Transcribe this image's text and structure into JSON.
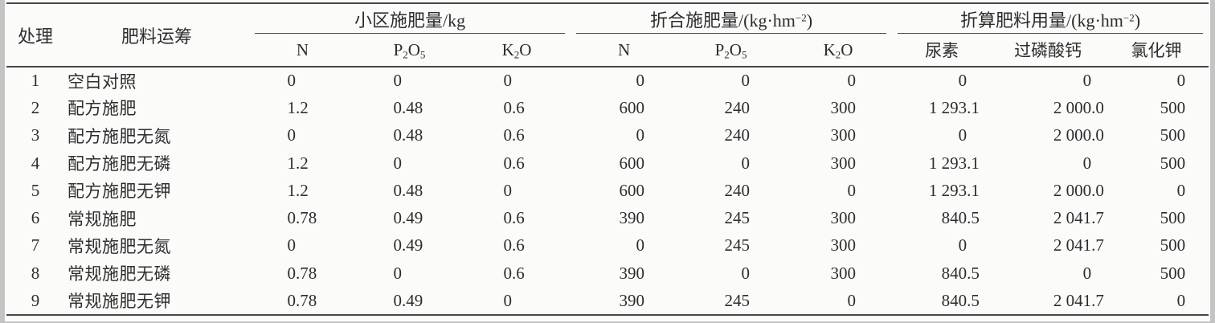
{
  "page": {
    "background": "#fbfbfa",
    "edge_color": "#c4c4c4"
  },
  "colors": {
    "text": "#2d2d2d",
    "rule": "#474747"
  },
  "table": {
    "treatment_header": "处理",
    "regime_header": "肥料运筹",
    "groups": [
      {
        "name": "plot-fertilizer-amount",
        "segments": [
          {
            "t": "小区施肥量/kg"
          }
        ]
      },
      {
        "name": "converted-fertilizer-rate",
        "segments": [
          {
            "t": "折合施肥量/(kg·hm"
          },
          {
            "t": "−2",
            "s": "sup"
          },
          {
            "t": ")"
          }
        ]
      },
      {
        "name": "converted-fertilizer-usage",
        "segments": [
          {
            "t": "折算肥料用量/(kg·hm"
          },
          {
            "t": "−2",
            "s": "sup"
          },
          {
            "t": ")"
          }
        ]
      }
    ],
    "sub_headers": [
      {
        "name": "plot-n",
        "segments": [
          {
            "t": "N"
          }
        ]
      },
      {
        "name": "plot-p2o5",
        "segments": [
          {
            "t": "P"
          },
          {
            "t": "2",
            "s": "sub"
          },
          {
            "t": "O"
          },
          {
            "t": "5",
            "s": "sub"
          }
        ]
      },
      {
        "name": "plot-k2o",
        "segments": [
          {
            "t": "K"
          },
          {
            "t": "2",
            "s": "sub"
          },
          {
            "t": "O"
          }
        ]
      },
      {
        "name": "rate-n",
        "segments": [
          {
            "t": "N"
          }
        ]
      },
      {
        "name": "rate-p2o5",
        "segments": [
          {
            "t": "P"
          },
          {
            "t": "2",
            "s": "sub"
          },
          {
            "t": "O"
          },
          {
            "t": "5",
            "s": "sub"
          }
        ]
      },
      {
        "name": "rate-k2o",
        "segments": [
          {
            "t": "K"
          },
          {
            "t": "2",
            "s": "sub"
          },
          {
            "t": "O"
          }
        ]
      },
      {
        "name": "urea",
        "segments": [
          {
            "t": "尿素"
          }
        ]
      },
      {
        "name": "superphosphate",
        "segments": [
          {
            "t": "过磷酸钙"
          }
        ]
      },
      {
        "name": "potassium-chloride",
        "segments": [
          {
            "t": "氯化钾"
          }
        ]
      }
    ],
    "rows": [
      {
        "treatment": "1",
        "regime": "空白对照",
        "values": [
          "0",
          "0",
          "0",
          "0",
          "0",
          "0",
          "0",
          "0",
          "0"
        ]
      },
      {
        "treatment": "2",
        "regime": "配方施肥",
        "values": [
          "1.2",
          "0.48",
          "0.6",
          "600",
          "240",
          "300",
          "1 293.1",
          "2 000.0",
          "500"
        ]
      },
      {
        "treatment": "3",
        "regime": "配方施肥无氮",
        "values": [
          "0",
          "0.48",
          "0.6",
          "0",
          "240",
          "300",
          "0",
          "2 000.0",
          "500"
        ]
      },
      {
        "treatment": "4",
        "regime": "配方施肥无磷",
        "values": [
          "1.2",
          "0",
          "0.6",
          "600",
          "0",
          "300",
          "1 293.1",
          "0",
          "500"
        ]
      },
      {
        "treatment": "5",
        "regime": "配方施肥无钾",
        "values": [
          "1.2",
          "0.48",
          "0",
          "600",
          "240",
          "0",
          "1 293.1",
          "2 000.0",
          "0"
        ]
      },
      {
        "treatment": "6",
        "regime": "常规施肥",
        "values": [
          "0.78",
          "0.49",
          "0.6",
          "390",
          "245",
          "300",
          "840.5",
          "2 041.7",
          "500"
        ]
      },
      {
        "treatment": "7",
        "regime": "常规施肥无氮",
        "values": [
          "0",
          "0.49",
          "0.6",
          "0",
          "245",
          "300",
          "0",
          "2 041.7",
          "500"
        ]
      },
      {
        "treatment": "8",
        "regime": "常规施肥无磷",
        "values": [
          "0.78",
          "0",
          "0.6",
          "390",
          "0",
          "300",
          "840.5",
          "0",
          "500"
        ]
      },
      {
        "treatment": "9",
        "regime": "常规施肥无钾",
        "values": [
          "0.78",
          "0.49",
          "0",
          "390",
          "245",
          "0",
          "840.5",
          "2 041.7",
          "0"
        ]
      }
    ]
  },
  "chart_data": {
    "type": "table",
    "columns": [
      "处理",
      "肥料运筹",
      "小区施肥量N/kg",
      "小区施肥量P2O5/kg",
      "小区施肥量K2O/kg",
      "折合施肥量N/(kg·hm-2)",
      "折合施肥量P2O5/(kg·hm-2)",
      "折合施肥量K2O/(kg·hm-2)",
      "折算肥料用量尿素/(kg·hm-2)",
      "折算肥料用量过磷酸钙/(kg·hm-2)",
      "折算肥料用量氯化钾/(kg·hm-2)"
    ],
    "rows": [
      [
        "1",
        "空白对照",
        "0",
        "0",
        "0",
        "0",
        "0",
        "0",
        "0",
        "0",
        "0"
      ],
      [
        "2",
        "配方施肥",
        "1.2",
        "0.48",
        "0.6",
        "600",
        "240",
        "300",
        "1 293.1",
        "2 000.0",
        "500"
      ],
      [
        "3",
        "配方施肥无氮",
        "0",
        "0.48",
        "0.6",
        "0",
        "240",
        "300",
        "0",
        "2 000.0",
        "500"
      ],
      [
        "4",
        "配方施肥无磷",
        "1.2",
        "0",
        "0.6",
        "600",
        "0",
        "300",
        "1 293.1",
        "0",
        "500"
      ],
      [
        "5",
        "配方施肥无钾",
        "1.2",
        "0.48",
        "0",
        "600",
        "240",
        "0",
        "1 293.1",
        "2 000.0",
        "0"
      ],
      [
        "6",
        "常规施肥",
        "0.78",
        "0.49",
        "0.6",
        "390",
        "245",
        "300",
        "840.5",
        "2 041.7",
        "500"
      ],
      [
        "7",
        "常规施肥无氮",
        "0",
        "0.49",
        "0.6",
        "0",
        "245",
        "300",
        "0",
        "2 041.7",
        "500"
      ],
      [
        "8",
        "常规施肥无磷",
        "0.78",
        "0",
        "0.6",
        "390",
        "0",
        "300",
        "840.5",
        "0",
        "500"
      ],
      [
        "9",
        "常规施肥无钾",
        "0.78",
        "0.49",
        "0",
        "390",
        "245",
        "0",
        "840.5",
        "2 041.7",
        "0"
      ]
    ]
  }
}
